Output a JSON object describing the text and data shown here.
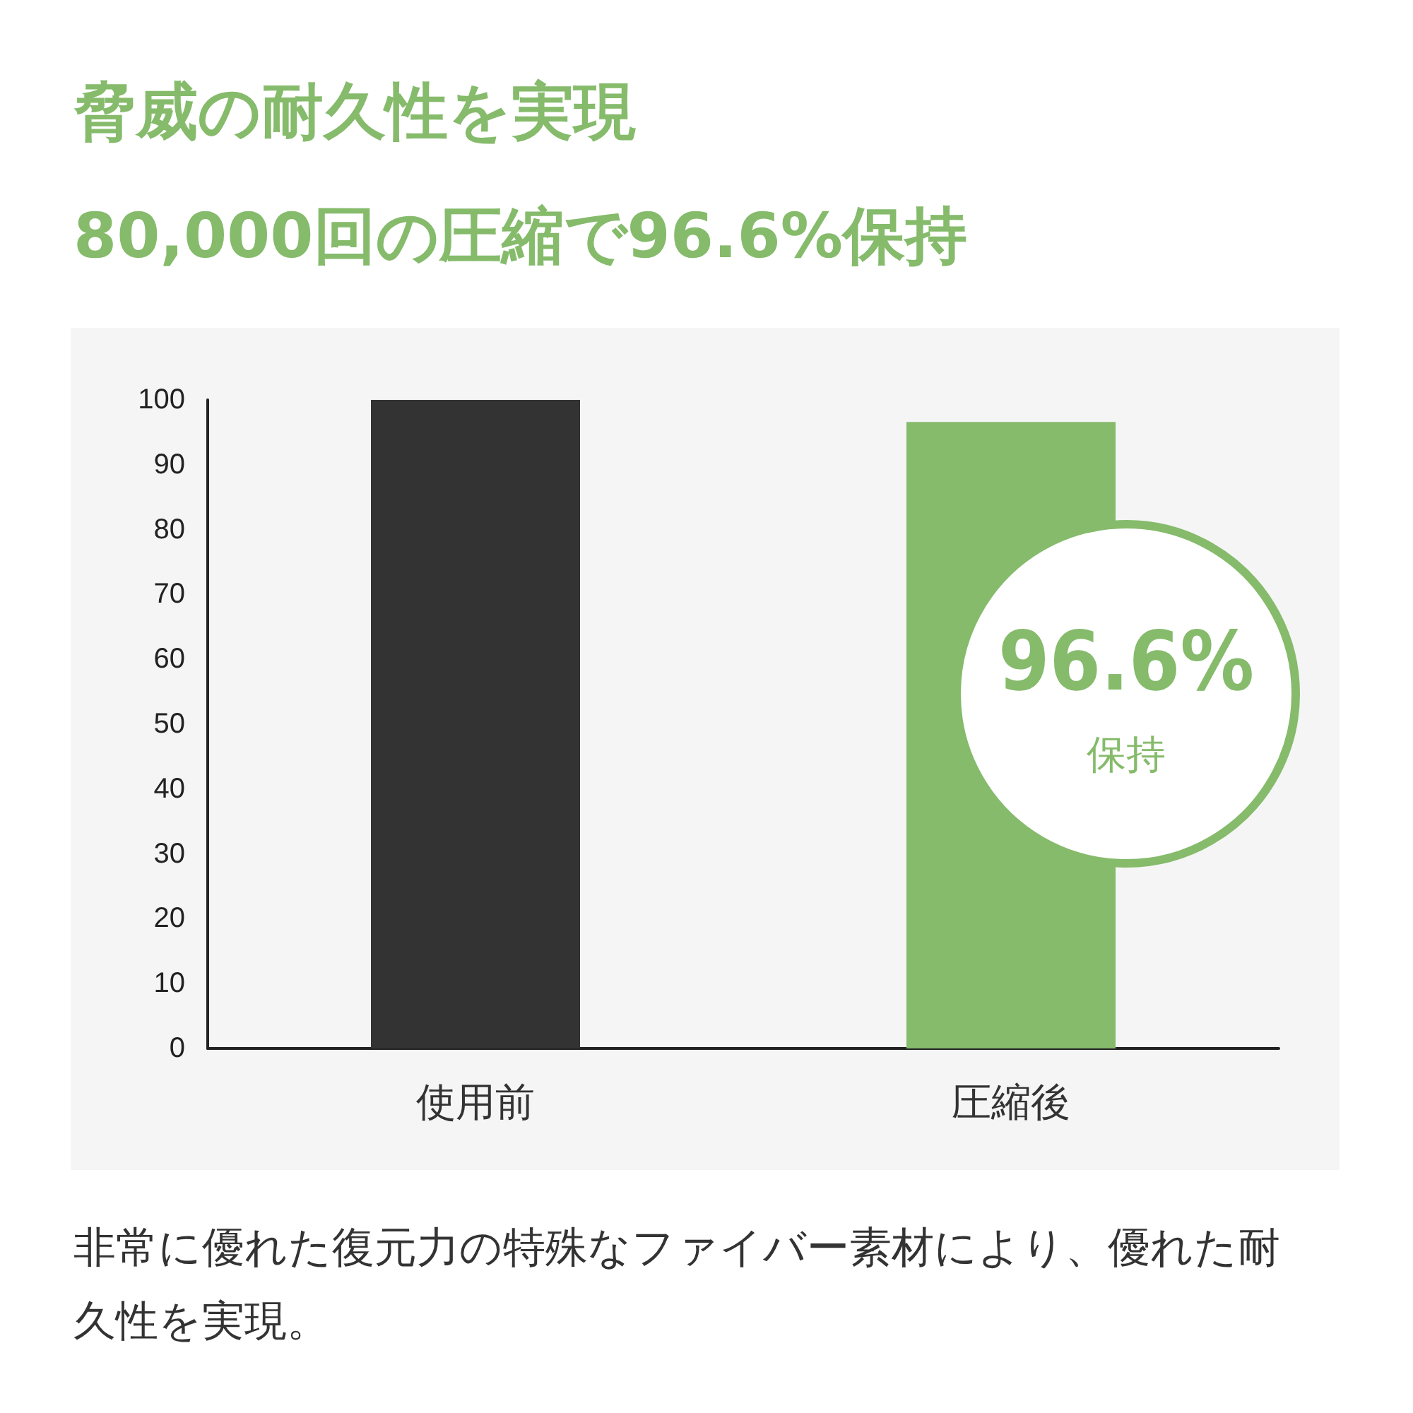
{
  "chart_data": {
    "type": "bar",
    "title": "脅威の耐久性を実現",
    "subtitle": "80,000回の圧縮で96.6%保持",
    "categories": [
      "使用前",
      "圧縮後"
    ],
    "values": [
      100,
      96.6
    ],
    "colors": [
      "#333333",
      "#85bb6b"
    ],
    "ylim": [
      0,
      100
    ],
    "yticks": [
      0,
      10,
      20,
      30,
      40,
      50,
      60,
      70,
      80,
      90,
      100
    ],
    "grid": false,
    "annotations": [
      "96.6%\n保持",
      "非常に優れた復元力の特殊なファイバー素材により、優れた耐久性を実現。"
    ]
  }
}
